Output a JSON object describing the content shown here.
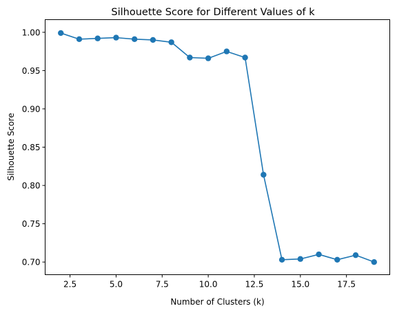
{
  "chart_data": {
    "type": "line",
    "title": "Silhouette Score for Different Values of k",
    "xlabel": "Number of Clusters (k)",
    "ylabel": "Silhouette Score",
    "xlim": [
      1.15,
      19.85
    ],
    "ylim": [
      0.6835,
      1.0165
    ],
    "grid": false,
    "legend": "none",
    "marker": "circle",
    "line_color": "#1f77b4",
    "x_ticks": [
      2.5,
      5.0,
      7.5,
      10.0,
      12.5,
      15.0,
      17.5
    ],
    "x_tick_labels": [
      "2.5",
      "5.0",
      "7.5",
      "10.0",
      "12.5",
      "15.0",
      "17.5"
    ],
    "y_ticks": [
      0.7,
      0.75,
      0.8,
      0.85,
      0.9,
      0.95,
      1.0
    ],
    "y_tick_labels": [
      "0.70",
      "0.75",
      "0.80",
      "0.85",
      "0.90",
      "0.95",
      "1.00"
    ],
    "series": [
      {
        "x": [
          2,
          3,
          4,
          5,
          6,
          7,
          8,
          9,
          10,
          11,
          12,
          13,
          14,
          15,
          16,
          17,
          18,
          19
        ],
        "values": [
          0.999,
          0.991,
          0.992,
          0.993,
          0.991,
          0.99,
          0.987,
          0.967,
          0.966,
          0.975,
          0.967,
          0.814,
          0.703,
          0.704,
          0.71,
          0.703,
          0.709,
          0.7
        ]
      }
    ]
  }
}
